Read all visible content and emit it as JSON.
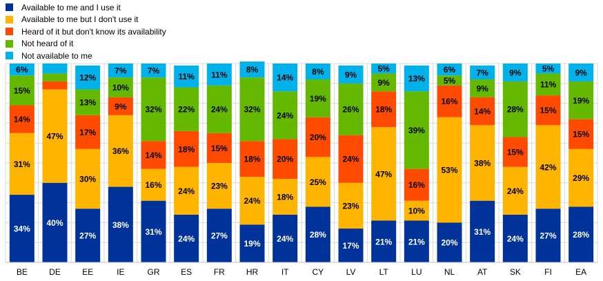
{
  "chart_data": {
    "type": "bar",
    "stacked": true,
    "title": "",
    "xlabel": "",
    "ylabel": "",
    "ylim": [
      0,
      100
    ],
    "grid": true,
    "legend_position": "top-left",
    "categories": [
      "BE",
      "DE",
      "EE",
      "IE",
      "GR",
      "ES",
      "FR",
      "HR",
      "IT",
      "CY",
      "LV",
      "LT",
      "LU",
      "NL",
      "AT",
      "SK",
      "FI",
      "EA"
    ],
    "series": [
      {
        "name": "Available to me and I use it",
        "color": "#003399",
        "label_color": "#ffffff",
        "values": [
          34,
          40,
          27,
          38,
          31,
          24,
          27,
          19,
          24,
          28,
          17,
          21,
          21,
          20,
          31,
          24,
          27,
          28
        ]
      },
      {
        "name": "Available to me but I don't use it",
        "color": "#FFB400",
        "label_color": "#000000",
        "values": [
          31,
          47,
          30,
          36,
          16,
          24,
          23,
          24,
          18,
          25,
          23,
          47,
          10,
          53,
          38,
          24,
          42,
          29
        ]
      },
      {
        "name": "Heard of it but don't know its availability",
        "color": "#FF4B00",
        "label_color": "#000000",
        "values": [
          14,
          4,
          17,
          9,
          14,
          18,
          15,
          18,
          20,
          20,
          24,
          18,
          16,
          16,
          14,
          15,
          15,
          15
        ]
      },
      {
        "name": "Not heard of it",
        "color": "#65B800",
        "label_color": "#000000",
        "values": [
          15,
          4,
          13,
          10,
          32,
          22,
          24,
          32,
          24,
          19,
          26,
          9,
          39,
          5,
          9,
          28,
          11,
          19
        ]
      },
      {
        "name": "Not available to me",
        "color": "#00B1EA",
        "label_color": "#000000",
        "values": [
          6,
          5,
          12,
          7,
          7,
          11,
          11,
          8,
          14,
          8,
          9,
          5,
          13,
          6,
          7,
          9,
          5,
          9
        ]
      }
    ],
    "unlabeled": [
      [
        1,
        2
      ],
      [
        1,
        3
      ],
      [
        1,
        4
      ]
    ]
  }
}
